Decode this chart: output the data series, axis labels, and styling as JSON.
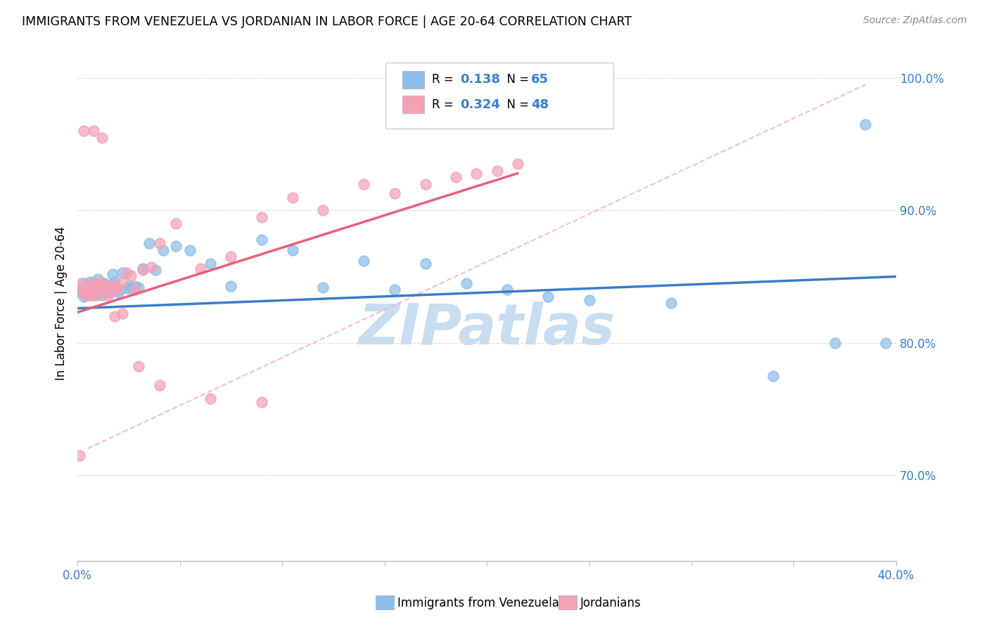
{
  "title": "IMMIGRANTS FROM VENEZUELA VS JORDANIAN IN LABOR FORCE | AGE 20-64 CORRELATION CHART",
  "source": "Source: ZipAtlas.com",
  "ylabel": "In Labor Force | Age 20-64",
  "ytick_values": [
    0.7,
    0.8,
    0.9,
    1.0
  ],
  "xlim": [
    0.0,
    0.4
  ],
  "ylim": [
    0.635,
    1.025
  ],
  "legend_r1_val": "0.138",
  "legend_n1_val": "65",
  "legend_r2_val": "0.324",
  "legend_n2_val": "48",
  "blue_color": "#8bbde8",
  "pink_color": "#f4a0b5",
  "trend_blue_color": "#3a7dc9",
  "trend_pink_color": "#e8607a",
  "text_color": "#3a7dc9",
  "background_color": "#ffffff",
  "grid_color": "#dddddd",
  "watermark": "ZIPatlas",
  "watermark_color": "#c8ddf0",
  "blue_scatter_x": [
    0.001,
    0.002,
    0.003,
    0.003,
    0.004,
    0.004,
    0.005,
    0.005,
    0.006,
    0.006,
    0.007,
    0.007,
    0.008,
    0.008,
    0.008,
    0.009,
    0.009,
    0.01,
    0.01,
    0.01,
    0.011,
    0.011,
    0.012,
    0.012,
    0.013,
    0.013,
    0.014,
    0.015,
    0.015,
    0.016,
    0.016,
    0.017,
    0.018,
    0.019,
    0.02,
    0.021,
    0.022,
    0.024,
    0.025,
    0.026,
    0.028,
    0.03,
    0.032,
    0.035,
    0.038,
    0.042,
    0.048,
    0.055,
    0.065,
    0.075,
    0.09,
    0.105,
    0.12,
    0.14,
    0.155,
    0.17,
    0.19,
    0.21,
    0.23,
    0.25,
    0.29,
    0.34,
    0.37,
    0.385,
    0.395
  ],
  "blue_scatter_y": [
    0.838,
    0.84,
    0.835,
    0.845,
    0.842,
    0.836,
    0.843,
    0.84,
    0.838,
    0.846,
    0.839,
    0.843,
    0.84,
    0.836,
    0.845,
    0.841,
    0.843,
    0.839,
    0.844,
    0.848,
    0.84,
    0.843,
    0.842,
    0.836,
    0.841,
    0.845,
    0.84,
    0.843,
    0.838,
    0.84,
    0.844,
    0.852,
    0.846,
    0.841,
    0.838,
    0.84,
    0.853,
    0.841,
    0.843,
    0.841,
    0.843,
    0.842,
    0.856,
    0.875,
    0.855,
    0.87,
    0.873,
    0.87,
    0.86,
    0.843,
    0.878,
    0.87,
    0.842,
    0.862,
    0.84,
    0.86,
    0.845,
    0.84,
    0.835,
    0.832,
    0.83,
    0.775,
    0.8,
    0.965,
    0.8
  ],
  "pink_scatter_x": [
    0.001,
    0.002,
    0.003,
    0.003,
    0.004,
    0.005,
    0.005,
    0.006,
    0.006,
    0.007,
    0.007,
    0.008,
    0.008,
    0.009,
    0.009,
    0.01,
    0.01,
    0.011,
    0.011,
    0.012,
    0.013,
    0.013,
    0.014,
    0.015,
    0.016,
    0.017,
    0.018,
    0.02,
    0.022,
    0.024,
    0.026,
    0.028,
    0.032,
    0.036,
    0.04,
    0.048,
    0.06,
    0.075,
    0.09,
    0.105,
    0.12,
    0.14,
    0.155,
    0.17,
    0.185,
    0.195,
    0.205,
    0.215
  ],
  "pink_scatter_y": [
    0.84,
    0.845,
    0.838,
    0.84,
    0.836,
    0.842,
    0.84,
    0.843,
    0.836,
    0.84,
    0.838,
    0.843,
    0.845,
    0.84,
    0.836,
    0.843,
    0.84,
    0.843,
    0.846,
    0.838,
    0.84,
    0.843,
    0.84,
    0.836,
    0.843,
    0.84,
    0.843,
    0.84,
    0.846,
    0.853,
    0.851,
    0.84,
    0.855,
    0.857,
    0.875,
    0.89,
    0.856,
    0.865,
    0.895,
    0.91,
    0.9,
    0.92,
    0.913,
    0.92,
    0.925,
    0.928,
    0.93,
    0.935
  ],
  "pink_extra_x": [
    0.001,
    0.003,
    0.008,
    0.012,
    0.018,
    0.022,
    0.03,
    0.04,
    0.065,
    0.09
  ],
  "pink_extra_y": [
    0.715,
    0.96,
    0.96,
    0.955,
    0.82,
    0.822,
    0.782,
    0.768,
    0.758,
    0.755
  ]
}
